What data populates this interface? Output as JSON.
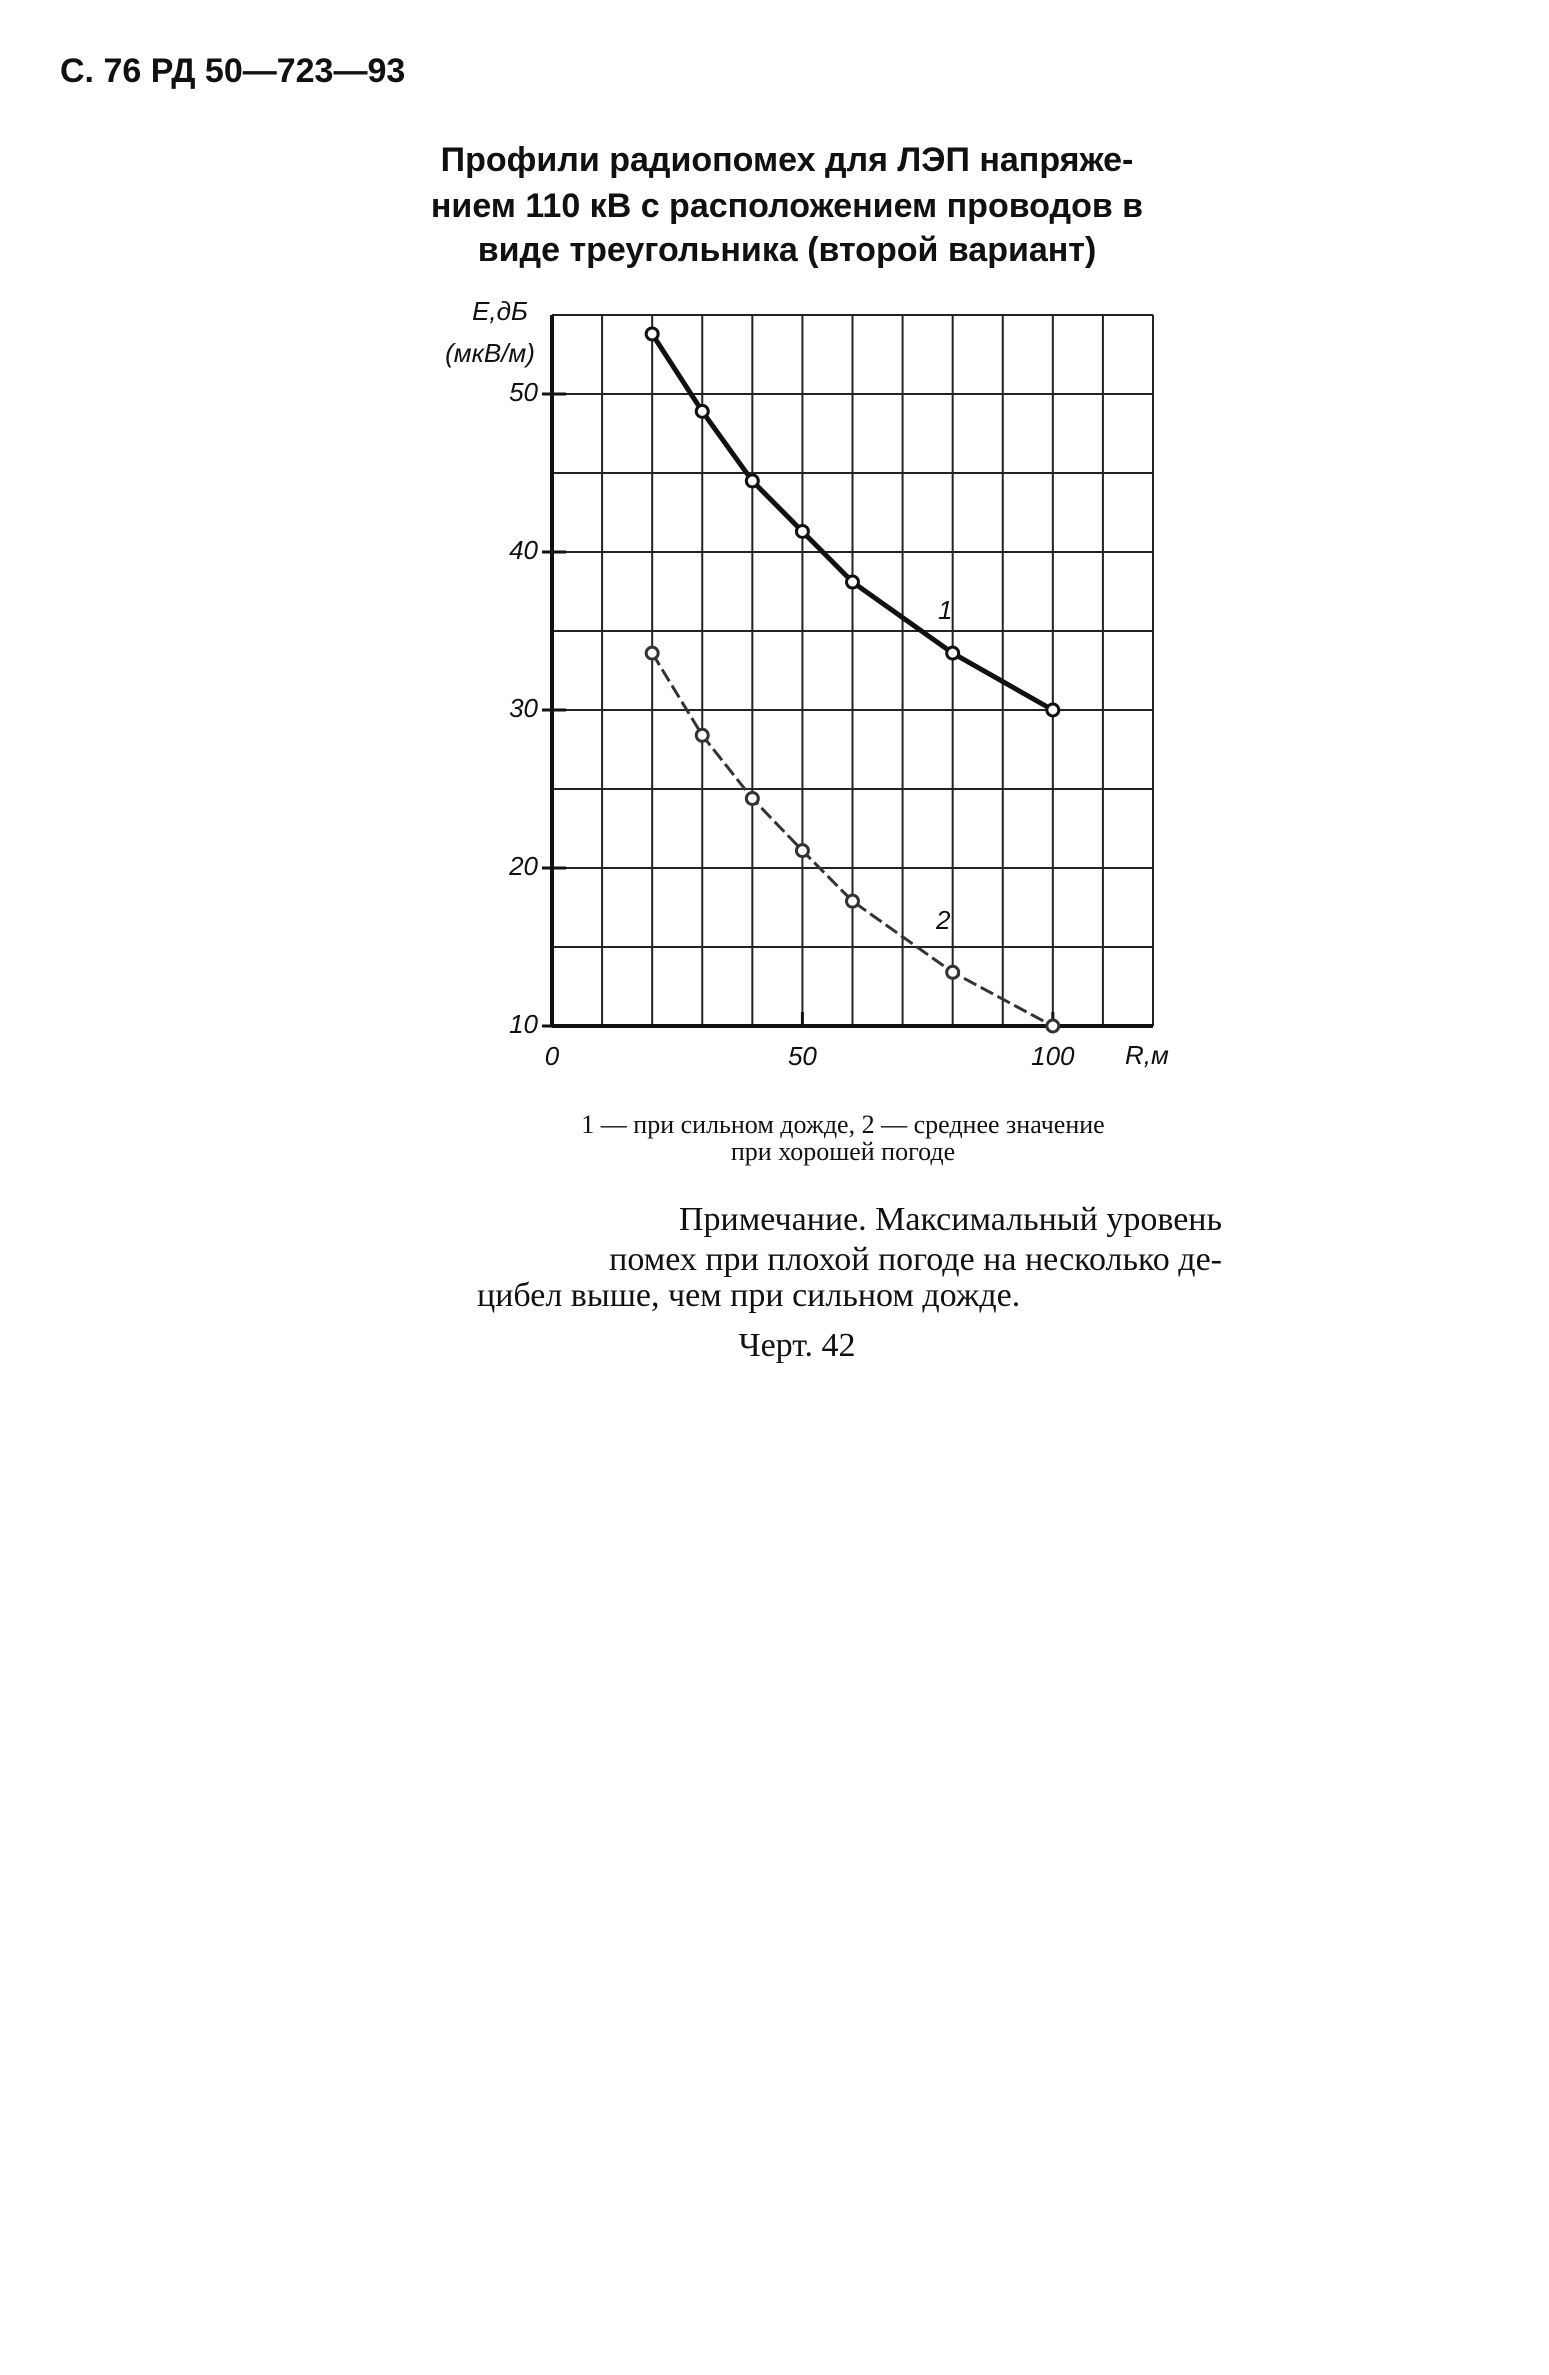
{
  "header": "С. 76 РД 50—723—93",
  "title": [
    "Профили радиопомех для ЛЭП напряже-",
    "нием 110 кВ с расположением проводов в",
    "виде треугольника (второй вариант)"
  ],
  "chart_data": {
    "type": "line",
    "y_label": [
      "E,дБ",
      "(мкВ/м)"
    ],
    "x_label": "R,м",
    "annotations": [
      "1",
      "2"
    ],
    "xlim": [
      0,
      120
    ],
    "ylim": [
      10,
      55
    ],
    "xticks": [
      0,
      50,
      100
    ],
    "yticks": [
      10,
      20,
      30,
      40,
      50
    ],
    "xgrid": [
      0,
      10,
      20,
      30,
      40,
      50,
      60,
      70,
      80,
      90,
      100,
      110,
      120
    ],
    "ygrid": [
      10,
      15,
      20,
      25,
      30,
      35,
      40,
      45,
      50,
      55
    ],
    "x": [
      20,
      30,
      40,
      50,
      60,
      80,
      100
    ],
    "series": [
      {
        "name": "1",
        "color": "#111111",
        "values": [
          53.8,
          48.9,
          44.5,
          41.3,
          38.1,
          33.6,
          30
        ]
      },
      {
        "name": "2",
        "color": "#333333",
        "values": [
          33.6,
          28.4,
          24.4,
          21.1,
          17.9,
          13.4,
          10
        ]
      }
    ]
  },
  "caption": [
    "1 — при сильном дожде, 2 — среднее значение",
    "при хорошей погоде"
  ],
  "note": [
    "Примечание. Максимальный уровень",
    "помех при плохой погоде на несколько де-",
    "цибел выше, чем при сильном дожде."
  ],
  "figure_label": "Черт. 42"
}
